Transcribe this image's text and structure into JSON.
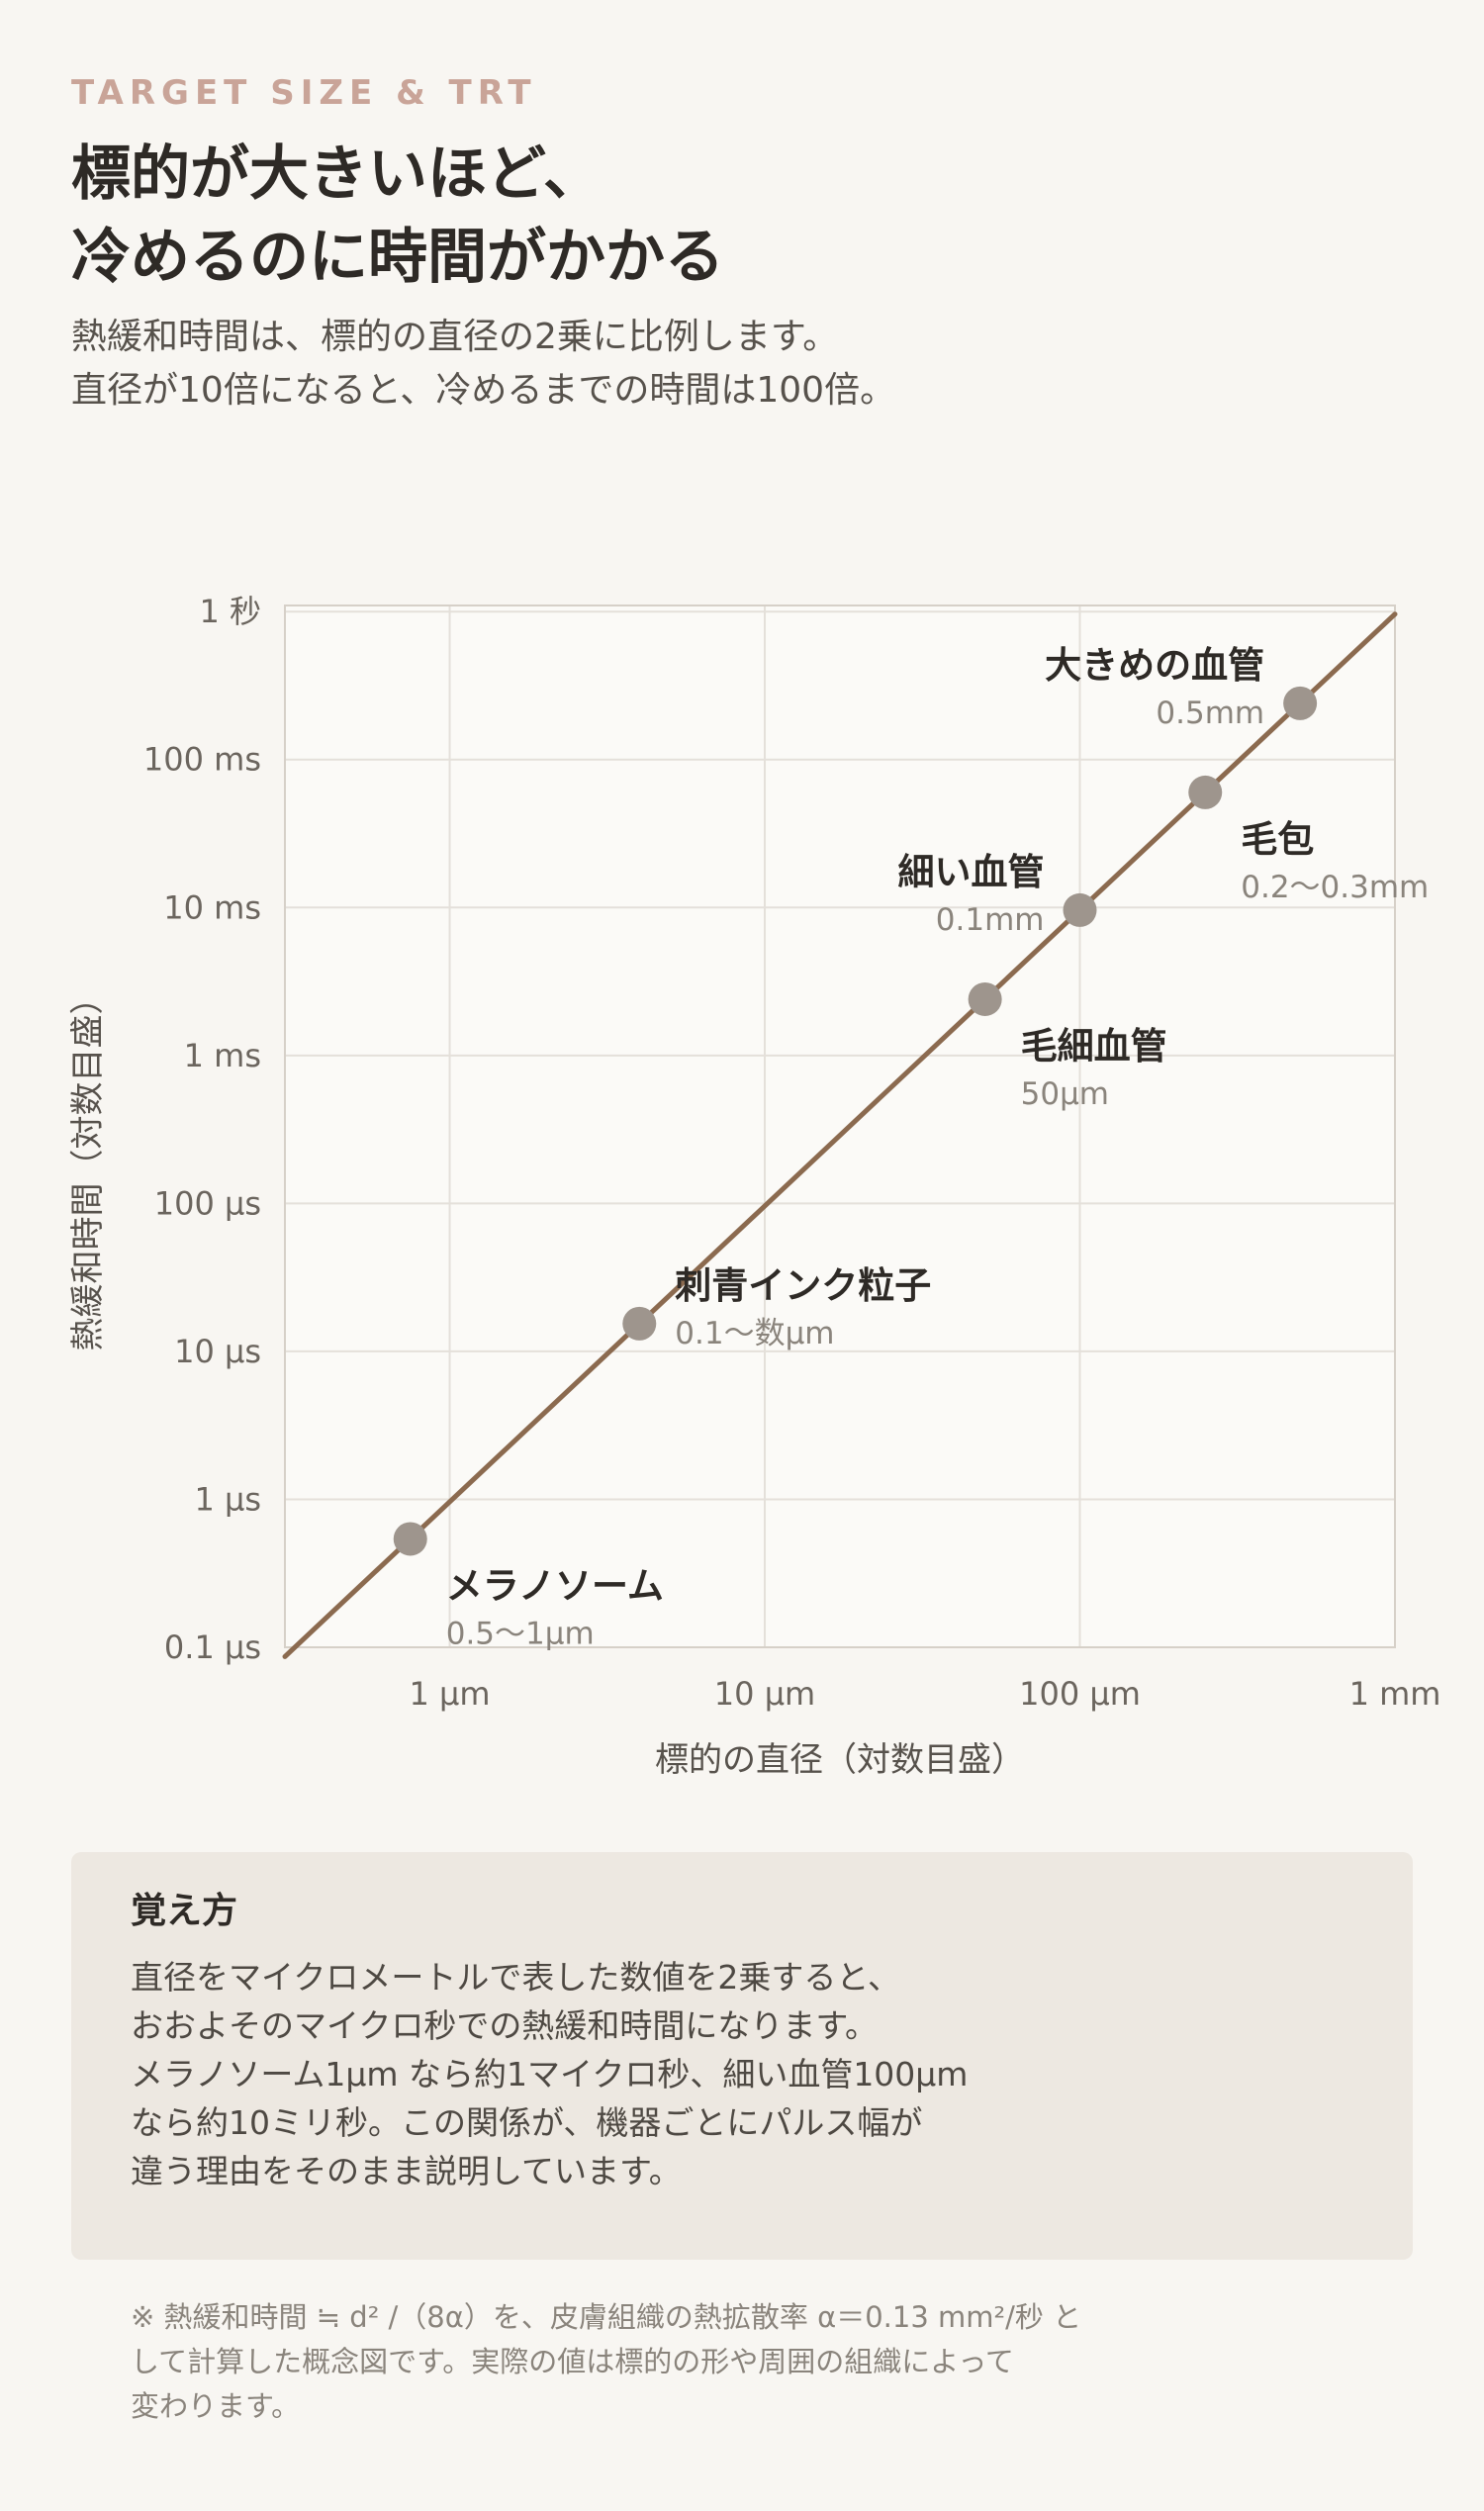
{
  "header": {
    "eyebrow": "TARGET SIZE & TRT",
    "title_lines": [
      "標的が大きいほど、",
      "冷めるのに時間がかかる"
    ],
    "subtitle_lines": [
      "熱緩和時間は、標的の直径の2乗に比例します。",
      "直径が10倍になると、冷めるまでの時間は100倍。"
    ]
  },
  "colors": {
    "background": "#f8f6f2",
    "eyebrow": "#c9a498",
    "line": "#8b6a4f",
    "point": "#9e958d",
    "grid": "#e4e0da",
    "memo_bg": "#ede8e1"
  },
  "chart_data": {
    "type": "scatter",
    "xlabel": "標的の直径（対数目盛）",
    "ylabel": "熱緩和時間（対数目盛）",
    "x_scale": "log",
    "y_scale": "log",
    "x_unit": "µm",
    "y_unit": "s",
    "xlim": [
      0.3,
      1000
    ],
    "ylim": [
      1e-07,
      1.1
    ],
    "grid": true,
    "x_ticks": [
      {
        "value": 1,
        "label": "1 µm"
      },
      {
        "value": 10,
        "label": "10 µm"
      },
      {
        "value": 100,
        "label": "100 µm"
      },
      {
        "value": 1000,
        "label": "1 mm"
      }
    ],
    "y_ticks": [
      {
        "value": 1,
        "label": "1 秒"
      },
      {
        "value": 0.1,
        "label": "100 ms"
      },
      {
        "value": 0.01,
        "label": "10 ms"
      },
      {
        "value": 0.001,
        "label": "1 ms"
      },
      {
        "value": 0.0001,
        "label": "100 µs"
      },
      {
        "value": 1e-05,
        "label": "10 µs"
      },
      {
        "value": 1e-06,
        "label": "1 µs"
      },
      {
        "value": 1e-07,
        "label": "0.1 µs"
      }
    ],
    "trend_line": {
      "formula": "t = d² / (8α)",
      "alpha_mm2_per_s": 0.13,
      "x_range": [
        0.3,
        1000
      ]
    },
    "points": [
      {
        "name": "メラノソーム",
        "size_label": "0.5〜1µm",
        "x": 0.75,
        "y": 5.4e-07,
        "label_pos": "below-right"
      },
      {
        "name": "刺青インク粒子",
        "size_label": "0.1〜数µm",
        "x": 4,
        "y": 1.54e-05,
        "label_pos": "right"
      },
      {
        "name": "毛細血管",
        "size_label": "50µm",
        "x": 50,
        "y": 0.0024,
        "label_pos": "below-right"
      },
      {
        "name": "細い血管",
        "size_label": "0.1mm",
        "x": 100,
        "y": 0.0096,
        "label_pos": "left"
      },
      {
        "name": "毛包",
        "size_label": "0.2〜0.3mm",
        "x": 250,
        "y": 0.06,
        "label_pos": "below-right"
      },
      {
        "name": "大きめの血管",
        "size_label": "0.5mm",
        "x": 500,
        "y": 0.24,
        "label_pos": "left"
      }
    ]
  },
  "memo": {
    "title": "覚え方",
    "lines": [
      "直径をマイクロメートルで表した数値を2乗すると、",
      "おおよそのマイクロ秒での熱緩和時間になります。",
      "メラノソーム1µm なら約1マイクロ秒、細い血管100µm",
      "なら約10ミリ秒。この関係が、機器ごとにパルス幅が",
      "違う理由をそのまま説明しています。"
    ]
  },
  "footnote": {
    "lines": [
      "※ 熱緩和時間 ≒ d² /（8α）を、皮膚組織の熱拡散率 α＝0.13 mm²/秒 と",
      "して計算した概念図です。実際の値は標的の形や周囲の組織によって",
      "変わります。"
    ]
  }
}
